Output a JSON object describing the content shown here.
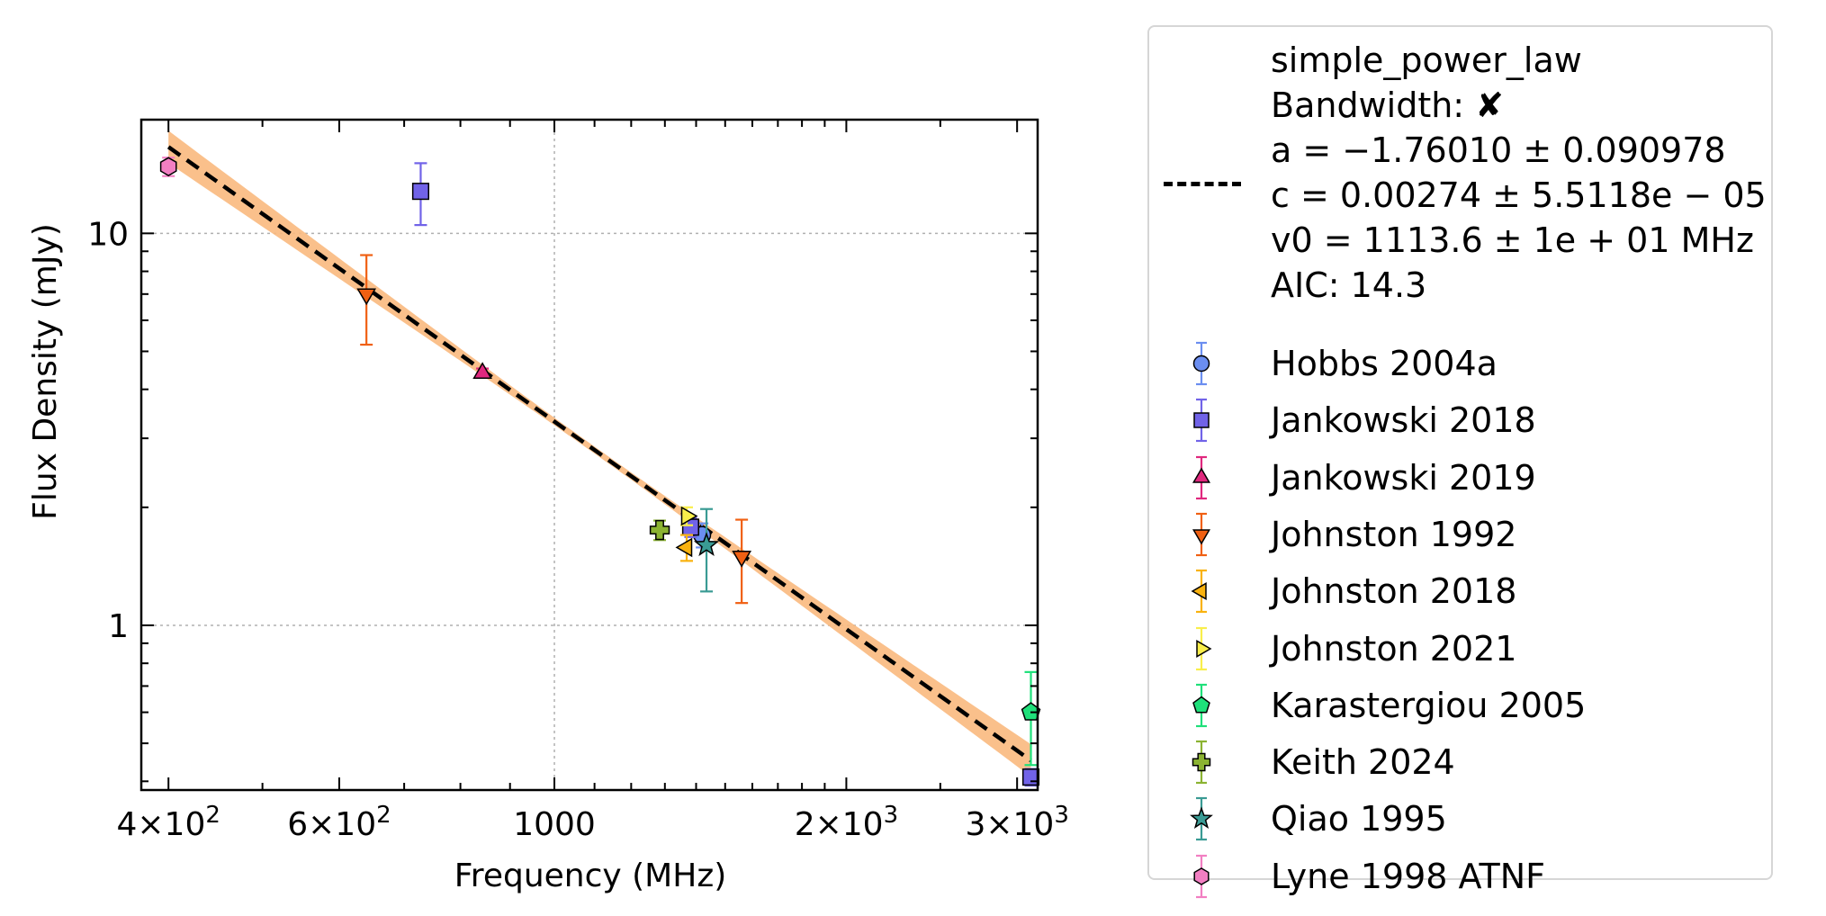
{
  "chart_data": {
    "type": "scatter",
    "xlabel": "Frequency (MHz)",
    "ylabel": "Flux Density (mJy)",
    "xscale": "log",
    "yscale": "log",
    "xlim": [
      375,
      3150
    ],
    "ylim": [
      0.38,
      19.5
    ],
    "xticks": [
      {
        "value": 400,
        "label": "4×10²"
      },
      {
        "value": 600,
        "label": "6×10²"
      },
      {
        "value": 1000,
        "label": "1000"
      },
      {
        "value": 2000,
        "label": "2×10³"
      },
      {
        "value": 3000,
        "label": "3×10³"
      }
    ],
    "yticks": [
      {
        "value": 1,
        "label": "1"
      },
      {
        "value": 10,
        "label": "10"
      }
    ],
    "grid": true,
    "legend_position": "outside-right",
    "fit": {
      "model": "simple_power_law",
      "bandwidth_label": "Bandwidth: ✘",
      "a_label": "a = −1.76010 ± 0.090978",
      "c_label": "c = 0.00274 ± 5.5118e − 05",
      "v0_label": "v0 = 1113.6 ± 1e + 01 MHz",
      "aic_label": "AIC: 14.3",
      "a": -1.7601,
      "c": 0.00274,
      "v0": 1113.6,
      "x_range": [
        400,
        3100
      ],
      "line_color": "#000000",
      "band_color": "#f9b97e"
    },
    "series": [
      {
        "name": "Hobbs 2004a",
        "marker": "circle",
        "color": "#6b8ef0",
        "points": [
          {
            "x": 1420,
            "y": 1.7,
            "err": 0.12
          }
        ]
      },
      {
        "name": "Jankowski 2018",
        "marker": "square",
        "color": "#7163e8",
        "points": [
          {
            "x": 728,
            "y": 12.8,
            "err": 2.3
          },
          {
            "x": 1382,
            "y": 1.78,
            "err": 0.1
          },
          {
            "x": 3100,
            "y": 0.41,
            "err": 0.02
          }
        ]
      },
      {
        "name": "Jankowski 2019",
        "marker": "triangle-up",
        "color": "#e0287e",
        "points": [
          {
            "x": 843,
            "y": 4.4,
            "err": 0.12
          }
        ]
      },
      {
        "name": "Johnston 1992",
        "marker": "triangle-down",
        "color": "#f06013",
        "points": [
          {
            "x": 640,
            "y": 7.0,
            "err": 1.8
          },
          {
            "x": 1560,
            "y": 1.5,
            "err": 0.36
          }
        ]
      },
      {
        "name": "Johnston 2018",
        "marker": "triangle-left",
        "color": "#f9b20f",
        "points": [
          {
            "x": 1369,
            "y": 1.58,
            "err": 0.12
          }
        ]
      },
      {
        "name": "Johnston 2021",
        "marker": "triangle-right",
        "color": "#f9ee4b",
        "points": [
          {
            "x": 1369,
            "y": 1.9,
            "err": 0.1
          }
        ]
      },
      {
        "name": "Karastergiou 2005",
        "marker": "pentagon",
        "color": "#1fe07a",
        "points": [
          {
            "x": 3100,
            "y": 0.6,
            "err": 0.16
          }
        ]
      },
      {
        "name": "Keith 2024",
        "marker": "plus",
        "color": "#8bb332",
        "points": [
          {
            "x": 1284,
            "y": 1.75,
            "err": 0.1
          }
        ]
      },
      {
        "name": "Qiao 1995",
        "marker": "star",
        "color": "#3a9b94",
        "points": [
          {
            "x": 1435,
            "y": 1.6,
            "err": 0.38
          }
        ]
      },
      {
        "name": "Lyne 1998 ATNF",
        "marker": "hexagon",
        "color": "#f27fc2",
        "points": [
          {
            "x": 400,
            "y": 14.8,
            "err": 0.8
          }
        ]
      }
    ]
  }
}
